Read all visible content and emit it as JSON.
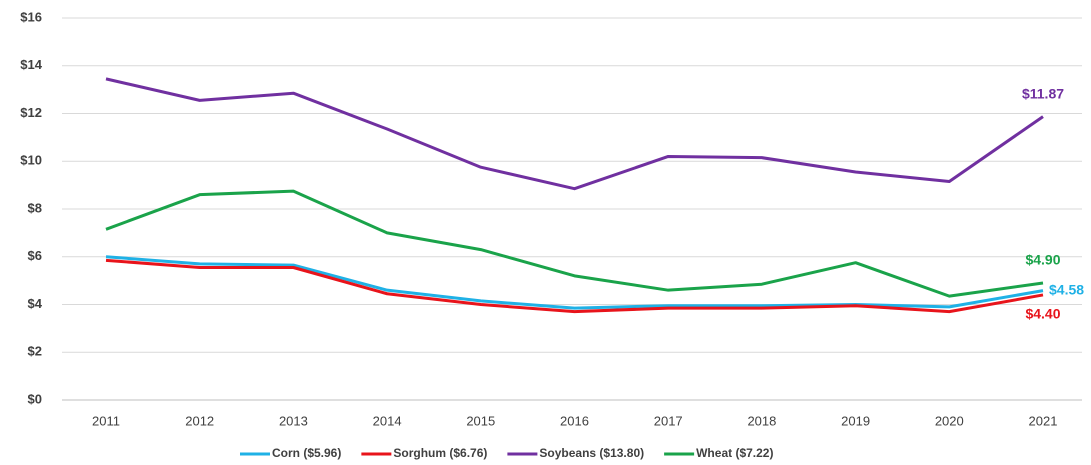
{
  "chart_data": {
    "type": "line",
    "x": [
      "2011",
      "2012",
      "2013",
      "2014",
      "2015",
      "2016",
      "2017",
      "2018",
      "2019",
      "2020",
      "2021"
    ],
    "series": [
      {
        "name": "Corn ($5.96)",
        "color": "#1fb1e6",
        "values": [
          6.0,
          5.7,
          5.65,
          4.6,
          4.15,
          3.85,
          3.95,
          3.95,
          4.0,
          3.9,
          4.58
        ],
        "value_labels": [
          null,
          null,
          null,
          null,
          null,
          null,
          null,
          null,
          null,
          null,
          "$4.58"
        ]
      },
      {
        "name": "Sorghum ($6.76)",
        "color": "#e8141b",
        "values": [
          5.85,
          5.55,
          5.55,
          4.45,
          4.0,
          3.7,
          3.85,
          3.85,
          3.95,
          3.7,
          4.4
        ],
        "value_labels": [
          null,
          null,
          null,
          null,
          null,
          null,
          null,
          null,
          null,
          null,
          "$4.40"
        ]
      },
      {
        "name": "Soybeans ($13.80)",
        "color": "#7030a0",
        "values": [
          13.45,
          12.55,
          12.85,
          11.35,
          9.75,
          8.85,
          10.2,
          10.15,
          9.55,
          9.15,
          11.87
        ],
        "value_labels": [
          null,
          null,
          null,
          null,
          null,
          null,
          null,
          null,
          null,
          null,
          "$11.87"
        ]
      },
      {
        "name": "Wheat ($7.22)",
        "color": "#1aa34a",
        "values": [
          7.15,
          8.6,
          8.75,
          7.0,
          6.3,
          5.2,
          4.6,
          4.85,
          5.75,
          4.35,
          4.9
        ],
        "value_labels": [
          null,
          null,
          null,
          null,
          null,
          null,
          null,
          null,
          null,
          null,
          "$4.90"
        ]
      }
    ],
    "ylim": [
      0,
      16
    ],
    "yticks": [
      {
        "value": 0,
        "label": "$0"
      },
      {
        "value": 2,
        "label": "$2"
      },
      {
        "value": 4,
        "label": "$4"
      },
      {
        "value": 6,
        "label": "$6"
      },
      {
        "value": 8,
        "label": "$8"
      },
      {
        "value": 10,
        "label": "$10"
      },
      {
        "value": 12,
        "label": "$12"
      },
      {
        "value": 14,
        "label": "$14"
      },
      {
        "value": 16,
        "label": "$16"
      }
    ],
    "grid": true,
    "legend": "bottom"
  }
}
